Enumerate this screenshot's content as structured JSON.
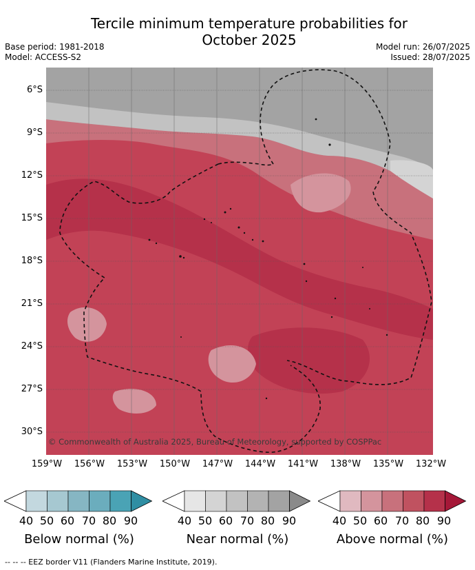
{
  "title_line1": "Tercile minimum temperature probabilities for",
  "title_line2": "October 2025",
  "base_period": "Base period: 1981-2018",
  "model": "Model: ACCESS-S2",
  "model_run": "Model run: 26/07/2025",
  "issued": "Issued: 28/07/2025",
  "lat_labels": [
    "6°S",
    "9°S",
    "12°S",
    "15°S",
    "18°S",
    "21°S",
    "24°S",
    "27°S",
    "30°S"
  ],
  "lon_labels": [
    "159°W",
    "156°W",
    "153°W",
    "150°W",
    "147°W",
    "144°W",
    "141°W",
    "138°W",
    "135°W",
    "132°W"
  ],
  "credit": "© Commonwealth of Australia 2025, Bureau of Meteorology, supported by COSPPac",
  "colorbars": [
    {
      "title": "Below normal (%)",
      "ticks": [
        "40",
        "50",
        "60",
        "70",
        "80",
        "90"
      ],
      "colors": [
        "#ffffff",
        "#c3d8df",
        "#a6c8d1",
        "#86b6c3",
        "#6badbd",
        "#4aa3b5",
        "#2f8ea3"
      ]
    },
    {
      "title": "Near normal (%)",
      "ticks": [
        "40",
        "50",
        "60",
        "70",
        "80",
        "90"
      ],
      "colors": [
        "#ffffff",
        "#e6e6e6",
        "#d4d4d4",
        "#c2c2c2",
        "#b3b3b3",
        "#a3a3a3",
        "#8a8a8a"
      ]
    },
    {
      "title": "Above normal (%)",
      "ticks": [
        "40",
        "50",
        "60",
        "70",
        "80",
        "90"
      ],
      "colors": [
        "#ffffff",
        "#e0b9c0",
        "#d4949d",
        "#c8717c",
        "#c05260",
        "#b5314a",
        "#a51838"
      ]
    }
  ],
  "footer": "--  --  -- EEZ border V11 (Flanders Marine Institute, 2019)."
}
